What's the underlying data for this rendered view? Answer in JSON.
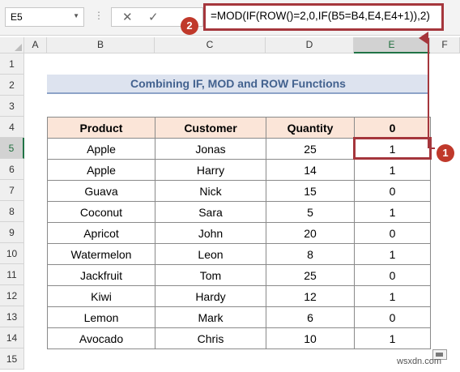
{
  "formula_bar": {
    "name_box": "E5",
    "cancel_icon": "✕",
    "enter_icon": "✓",
    "formula": "=MOD(IF(ROW()=2,0,IF(B5=B4,E4,E4+1)),2)"
  },
  "callouts": {
    "formula": "2",
    "cell": "1"
  },
  "columns": [
    "A",
    "B",
    "C",
    "D",
    "E",
    "F"
  ],
  "rows": [
    "1",
    "2",
    "3",
    "4",
    "5",
    "6",
    "7",
    "8",
    "9",
    "10",
    "11",
    "12",
    "13",
    "14",
    "15"
  ],
  "title": "Combining IF, MOD and ROW Functions",
  "table": {
    "headers": [
      "Product",
      "Customer",
      "Quantity",
      "0"
    ],
    "rows": [
      [
        "Apple",
        "Jonas",
        "25",
        "1"
      ],
      [
        "Apple",
        "Harry",
        "14",
        "1"
      ],
      [
        "Guava",
        "Nick",
        "15",
        "0"
      ],
      [
        "Coconut",
        "Sara",
        "5",
        "1"
      ],
      [
        "Apricot",
        "John",
        "20",
        "0"
      ],
      [
        "Watermelon",
        "Leon",
        "8",
        "1"
      ],
      [
        "Jackfruit",
        "Tom",
        "25",
        "0"
      ],
      [
        "Kiwi",
        "Hardy",
        "12",
        "1"
      ],
      [
        "Lemon",
        "Mark",
        "6",
        "0"
      ],
      [
        "Avocado",
        "Chris",
        "10",
        "1"
      ]
    ]
  },
  "watermark": "wsxdn.com",
  "colors": {
    "accent": "#a5363c",
    "header_fill": "#fbe5d8",
    "title_fill": "#dde3ef",
    "title_text": "#43628f"
  }
}
